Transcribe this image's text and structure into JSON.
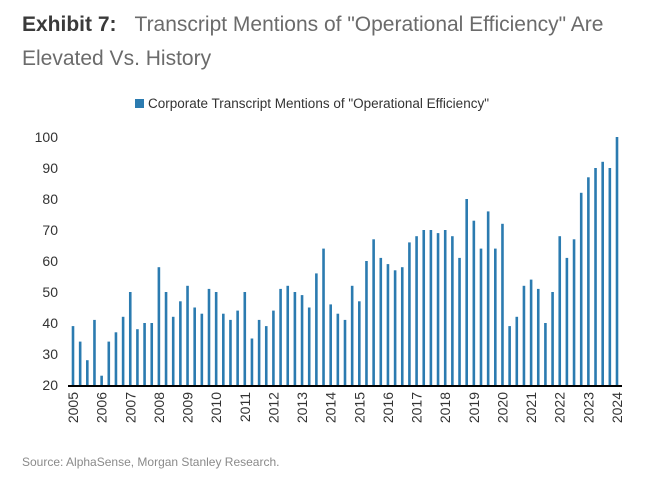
{
  "header": {
    "exhibit_label": "Exhibit 7:",
    "title": "Transcript Mentions of \"Operational Efficiency\" Are Elevated Vs. History"
  },
  "source": "Source: AlphaSense, Morgan Stanley Research.",
  "colors": {
    "bar": "#2b7bb0",
    "axis": "#000000",
    "tick_text": "#333333"
  },
  "chart_data": {
    "type": "bar",
    "title": "Transcript Mentions of \"Operational Efficiency\" Are Elevated Vs. History",
    "xlabel": "",
    "ylabel": "",
    "ylim": [
      20,
      100
    ],
    "yticks": [
      20,
      30,
      40,
      50,
      60,
      70,
      80,
      90,
      100
    ],
    "grid": false,
    "legend_position": "top-center",
    "x_tick_labels": [
      "2005",
      "2006",
      "2007",
      "2008",
      "2009",
      "2010",
      "2011",
      "2012",
      "2013",
      "2014",
      "2015",
      "2016",
      "2017",
      "2018",
      "2019",
      "2020",
      "2021",
      "2022",
      "2023",
      "2024"
    ],
    "frequency": "quarterly",
    "start": "2005 Q1",
    "end": "2024 Q1",
    "series": [
      {
        "name": "Corporate Transcript Mentions of \"Operational Efficiency\"",
        "values": [
          39,
          34,
          28,
          41,
          23,
          34,
          37,
          42,
          50,
          38,
          40,
          40,
          58,
          50,
          42,
          47,
          52,
          45,
          43,
          51,
          50,
          43,
          41,
          44,
          50,
          35,
          41,
          39,
          44,
          51,
          52,
          50,
          49,
          45,
          56,
          64,
          46,
          43,
          41,
          52,
          47,
          60,
          67,
          61,
          59,
          57,
          58,
          66,
          68,
          70,
          70,
          69,
          70,
          68,
          61,
          80,
          73,
          64,
          76,
          64,
          72,
          39,
          42,
          52,
          54,
          51,
          40,
          50,
          68,
          61,
          67,
          82,
          87,
          90,
          92,
          90,
          100
        ]
      }
    ]
  }
}
